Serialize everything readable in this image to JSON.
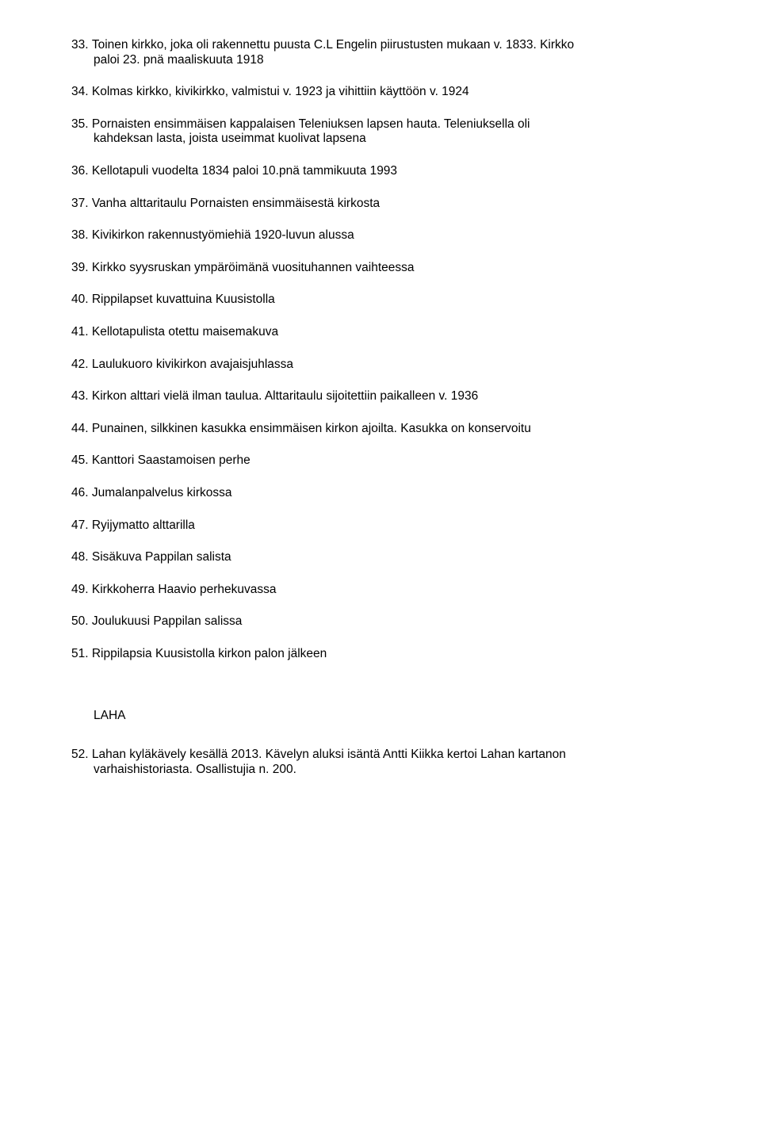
{
  "items": [
    {
      "num": "33.",
      "text": "Toinen kirkko, joka oli rakennettu puusta   C.L Engelin piirustusten mukaan v. 1833.  Kirkko",
      "cont": "paloi 23. pnä maaliskuuta 1918"
    },
    {
      "num": "34.",
      "text": "Kolmas kirkko, kivikirkko, valmistui v. 1923 ja vihittiin käyttöön v. 1924"
    },
    {
      "num": "35.",
      "text": "Pornaisten ensimmäisen kappalaisen Teleniuksen lapsen hauta. Teleniuksella oli",
      "cont": "kahdeksan lasta, joista useimmat kuolivat lapsena"
    },
    {
      "num": "36.",
      "text": "Kellotapuli vuodelta 1834 paloi 10.pnä tammikuuta 1993"
    },
    {
      "num": "37.",
      "text": "Vanha alttaritaulu Pornaisten ensimmäisestä kirkosta"
    },
    {
      "num": "38.",
      "text": "Kivikirkon rakennustyömiehiä 1920-luvun alussa"
    },
    {
      "num": "39.",
      "text": "Kirkko syysruskan ympäröimänä vuosituhannen vaihteessa"
    },
    {
      "num": "40.",
      "text": "Rippilapset kuvattuina Kuusistolla"
    },
    {
      "num": "41.",
      "text": "Kellotapulista otettu maisemakuva"
    },
    {
      "num": "42.",
      "text": "Laulukuoro kivikirkon avajaisjuhlassa"
    },
    {
      "num": "43.",
      "text": "Kirkon alttari vielä ilman taulua. Alttaritaulu sijoitettiin paikalleen v. 1936"
    },
    {
      "num": "44.",
      "text": "Punainen, silkkinen kasukka ensimmäisen kirkon ajoilta. Kasukka on konservoitu"
    },
    {
      "num": "45.",
      "text": "Kanttori Saastamoisen perhe"
    },
    {
      "num": "46.",
      "text": "Jumalanpalvelus kirkossa"
    },
    {
      "num": "47.",
      "text": "Ryijymatto alttarilla"
    },
    {
      "num": "48.",
      "text": "Sisäkuva Pappilan salista"
    },
    {
      "num": "49.",
      "text": "Kirkkoherra Haavio perhekuvassa"
    },
    {
      "num": "50.",
      "text": "Joulukuusi Pappilan salissa"
    },
    {
      "num": "51.",
      "text": "Rippilapsia Kuusistolla kirkon palon jälkeen"
    }
  ],
  "section_heading": "LAHA",
  "items2": [
    {
      "num": "52.",
      "text": "Lahan kyläkävely kesällä 2013. Kävelyn aluksi isäntä Antti Kiikka kertoi Lahan kartanon",
      "cont": "varhaishistoriasta. Osallistujia n. 200."
    }
  ]
}
